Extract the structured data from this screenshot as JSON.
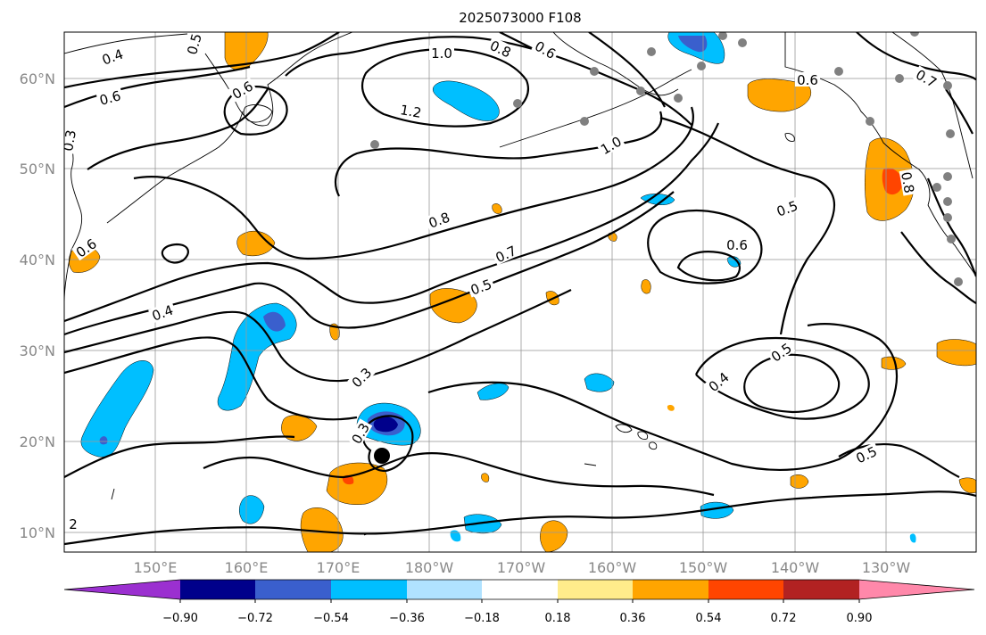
{
  "title": "2025073000 F108",
  "map": {
    "lat_ticks": [
      "60°N",
      "50°N",
      "40°N",
      "30°N",
      "20°N",
      "10°N"
    ],
    "lon_ticks": [
      "150°E",
      "160°E",
      "170°E",
      "180°W",
      "170°W",
      "160°W",
      "150°W",
      "140°W",
      "130°W"
    ],
    "grid": true
  },
  "colorbar": {
    "tick_labels": [
      "−0.90",
      "−0.72",
      "−0.54",
      "−0.36",
      "−0.18",
      "0.18",
      "0.36",
      "0.54",
      "0.72",
      "0.90"
    ],
    "colors": [
      "#9b30d0",
      "#00008b",
      "#3a5fcd",
      "#00bfff",
      "#b0e2ff",
      "#ffffff",
      "#ffec8b",
      "#ffa500",
      "#ff4500",
      "#b22222",
      "#ff88aa"
    ],
    "extend": "both"
  },
  "contour_labels": [
    "0.4",
    "0.5",
    "0.6",
    "0.6",
    "1.0",
    "0.8",
    "0.6",
    "0.3",
    "0.6",
    "0.7",
    "0.8",
    "1.2",
    "1.0",
    "0.8",
    "0.5",
    "0.6",
    "0.7",
    "0.5",
    "0.4",
    "0.3",
    "0.3",
    "0.4",
    "0.5",
    "0.5",
    "0.6",
    "2"
  ],
  "storm_marker": {
    "lat": 18.5,
    "lon": 185.0
  }
}
